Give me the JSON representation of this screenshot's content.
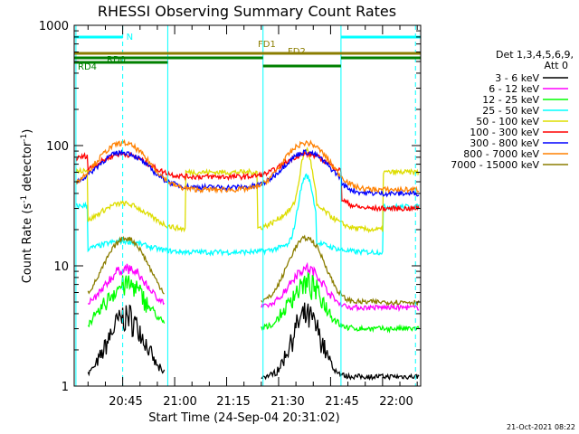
{
  "chart_data": {
    "type": "line",
    "title": "RHESSI Observing Summary Count Rates",
    "xlabel": "Start Time (24-Sep-04 20:31:02)",
    "ylabel_main": "Count Rate (s",
    "ylabel_sup1": "-1",
    "ylabel_mid": " detector",
    "ylabel_sup2": "-1",
    "ylabel_end": ")",
    "yscale": "log",
    "ylim": [
      1,
      1000
    ],
    "x_start": "20:31",
    "x_end": "22:11",
    "x_ticks": [
      "20:45",
      "21:00",
      "21:15",
      "21:30",
      "21:45",
      "22:00"
    ],
    "y_ticks": [
      "1",
      "10",
      "100",
      "1000"
    ],
    "legend_title_1": "Det 1,3,4,5,6,9,",
    "legend_title_2": "Att 0",
    "flags": {
      "N": "N",
      "FD1": "FD1",
      "FD2": "FD2",
      "RD0": "RD0",
      "RD4": "RD4"
    },
    "footer_date": "21-Oct-2021 08:22",
    "series": [
      {
        "name": "3 - 6 keV",
        "color": "#000000"
      },
      {
        "name": "6 - 12 keV",
        "color": "#ff00ff"
      },
      {
        "name": "12 - 25 keV",
        "color": "#00ff00"
      },
      {
        "name": "25 - 50 keV",
        "color": "#00ffff"
      },
      {
        "name": "50 - 100 keV",
        "color": "#dddd00"
      },
      {
        "name": "100 - 300 keV",
        "color": "#ff0000"
      },
      {
        "name": "300 - 800 keV",
        "color": "#0000ff"
      },
      {
        "name": "800 - 7000 keV",
        "color": "#ff8000"
      },
      {
        "name": "7000 - 15000 keV",
        "color": "#8b7d00"
      }
    ]
  }
}
